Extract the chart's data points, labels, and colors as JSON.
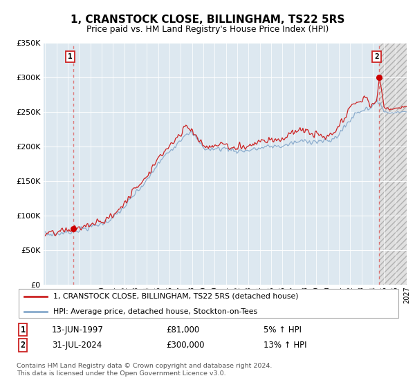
{
  "title": "1, CRANSTOCK CLOSE, BILLINGHAM, TS22 5RS",
  "subtitle": "Price paid vs. HM Land Registry's House Price Index (HPI)",
  "legend_line1": "1, CRANSTOCK CLOSE, BILLINGHAM, TS22 5RS (detached house)",
  "legend_line2": "HPI: Average price, detached house, Stockton-on-Tees",
  "transaction1_date": "13-JUN-1997",
  "transaction1_price": 81000,
  "transaction1_pct": "5% ↑ HPI",
  "transaction2_date": "31-JUL-2024",
  "transaction2_price": 300000,
  "transaction2_pct": "13% ↑ HPI",
  "footnote": "Contains HM Land Registry data © Crown copyright and database right 2024.\nThis data is licensed under the Open Government Licence v3.0.",
  "bg_color": "#dde8f0",
  "hatch_bg_color": "#e8e8e8",
  "grid_color": "#ffffff",
  "red_line_color": "#cc2222",
  "blue_line_color": "#88aacc",
  "dashed_line_color": "#dd6666",
  "marker_color": "#cc0000",
  "ylim": [
    0,
    350000
  ],
  "yticks": [
    0,
    50000,
    100000,
    150000,
    200000,
    250000,
    300000,
    350000
  ],
  "ytick_labels": [
    "£0",
    "£50K",
    "£100K",
    "£150K",
    "£200K",
    "£250K",
    "£300K",
    "£350K"
  ],
  "x_start_year": 1995,
  "x_end_year": 2027,
  "transaction1_year": 1997.46,
  "transaction2_year": 2024.58
}
